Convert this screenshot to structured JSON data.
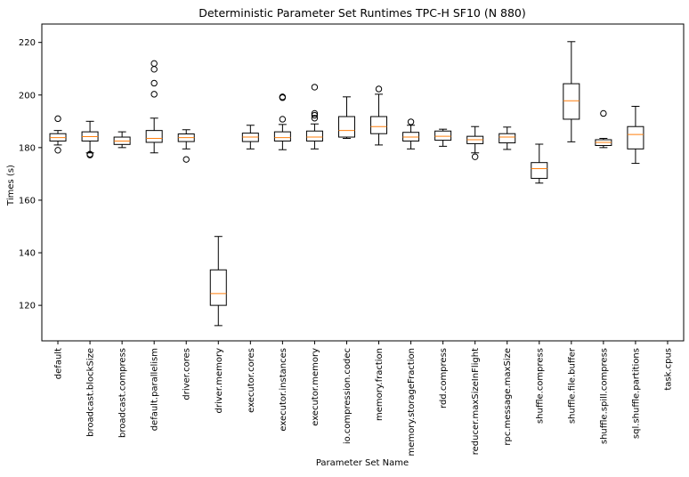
{
  "chart_data": {
    "type": "boxplot",
    "title": "Deterministic Parameter Set Runtimes TPC-H SF10 (N 880)",
    "xlabel": "Parameter Set Name",
    "ylabel": "Times (s)",
    "ylim": [
      106.5,
      227
    ],
    "yticks": [
      120,
      140,
      160,
      180,
      200,
      220
    ],
    "grid": false,
    "colors": {
      "box": "#000000",
      "median": "#ff7f0e",
      "background": "#ffffff"
    },
    "categories": [
      "default",
      "broadcast.blockSize",
      "broadcast.compress",
      "default.parallelism",
      "driver.cores",
      "driver.memory",
      "executor.cores",
      "executor.instances",
      "executor.memory",
      "io.compression.codec",
      "memory.fraction",
      "memory.storageFraction",
      "rdd.compress",
      "reducer.maxSizeInFlight",
      "rpc.message.maxSize",
      "shuffle.compress",
      "shuffle.file.buffer",
      "shuffle.spill.compress",
      "sql.shuffle.partitions",
      "task.cpus"
    ],
    "boxes": [
      {
        "whislo": 181,
        "q1": 182.5,
        "med": 183.8,
        "q3": 185.3,
        "whishi": 186.5,
        "fliers": [
          191,
          179
        ]
      },
      {
        "whislo": 178,
        "q1": 182.5,
        "med": 184.2,
        "q3": 186,
        "whishi": 190,
        "fliers": [
          177.5,
          177.2
        ]
      },
      {
        "whislo": 180,
        "q1": 181.2,
        "med": 182.5,
        "q3": 184,
        "whishi": 186,
        "fliers": []
      },
      {
        "whislo": 178,
        "q1": 182,
        "med": 183.5,
        "q3": 186.5,
        "whishi": 191.2,
        "fliers": [
          200.3,
          204.5,
          209.8,
          212
        ]
      },
      {
        "whislo": 179.5,
        "q1": 182.3,
        "med": 183.8,
        "q3": 185.2,
        "whishi": 186.8,
        "fliers": [
          175.5
        ]
      },
      {
        "whislo": 112.3,
        "q1": 120,
        "med": 124.5,
        "q3": 133.5,
        "whishi": 146.2,
        "fliers": []
      },
      {
        "whislo": 179.5,
        "q1": 182.3,
        "med": 184,
        "q3": 185.5,
        "whishi": 188.5,
        "fliers": []
      },
      {
        "whislo": 179.2,
        "q1": 182.5,
        "med": 183.8,
        "q3": 186,
        "whishi": 188.8,
        "fliers": [
          190.8,
          199,
          199.3
        ]
      },
      {
        "whislo": 179.5,
        "q1": 182.5,
        "med": 184,
        "q3": 186.3,
        "whishi": 189,
        "fliers": [
          191.2,
          192.3,
          193,
          203
        ]
      },
      {
        "whislo": 183.5,
        "q1": 184,
        "med": 186.5,
        "q3": 191.8,
        "whishi": 199.3,
        "fliers": []
      },
      {
        "whislo": 181,
        "q1": 185.3,
        "med": 188,
        "q3": 191.8,
        "whishi": 200.3,
        "fliers": [
          202.3
        ]
      },
      {
        "whislo": 179.5,
        "q1": 182.5,
        "med": 184,
        "q3": 185.8,
        "whishi": 188.5,
        "fliers": [
          189.8
        ]
      },
      {
        "whislo": 180.5,
        "q1": 182.8,
        "med": 184.3,
        "q3": 186.3,
        "whishi": 187,
        "fliers": []
      },
      {
        "whislo": 178,
        "q1": 181.5,
        "med": 183,
        "q3": 184.3,
        "whishi": 188,
        "fliers": [
          176.5
        ]
      },
      {
        "whislo": 179.3,
        "q1": 181.8,
        "med": 184,
        "q3": 185.3,
        "whishi": 187.8,
        "fliers": []
      },
      {
        "whislo": 166.5,
        "q1": 168.3,
        "med": 172,
        "q3": 174.3,
        "whishi": 181.3,
        "fliers": []
      },
      {
        "whislo": 182.2,
        "q1": 190.8,
        "med": 197.8,
        "q3": 204.3,
        "whishi": 220.3,
        "fliers": []
      },
      {
        "whislo": 180,
        "q1": 180.8,
        "med": 182,
        "q3": 183,
        "whishi": 183.5,
        "fliers": [
          193
        ]
      },
      {
        "whislo": 174,
        "q1": 179.5,
        "med": 185,
        "q3": 188,
        "whishi": 195.7,
        "fliers": []
      },
      {
        "empty": true
      }
    ]
  }
}
